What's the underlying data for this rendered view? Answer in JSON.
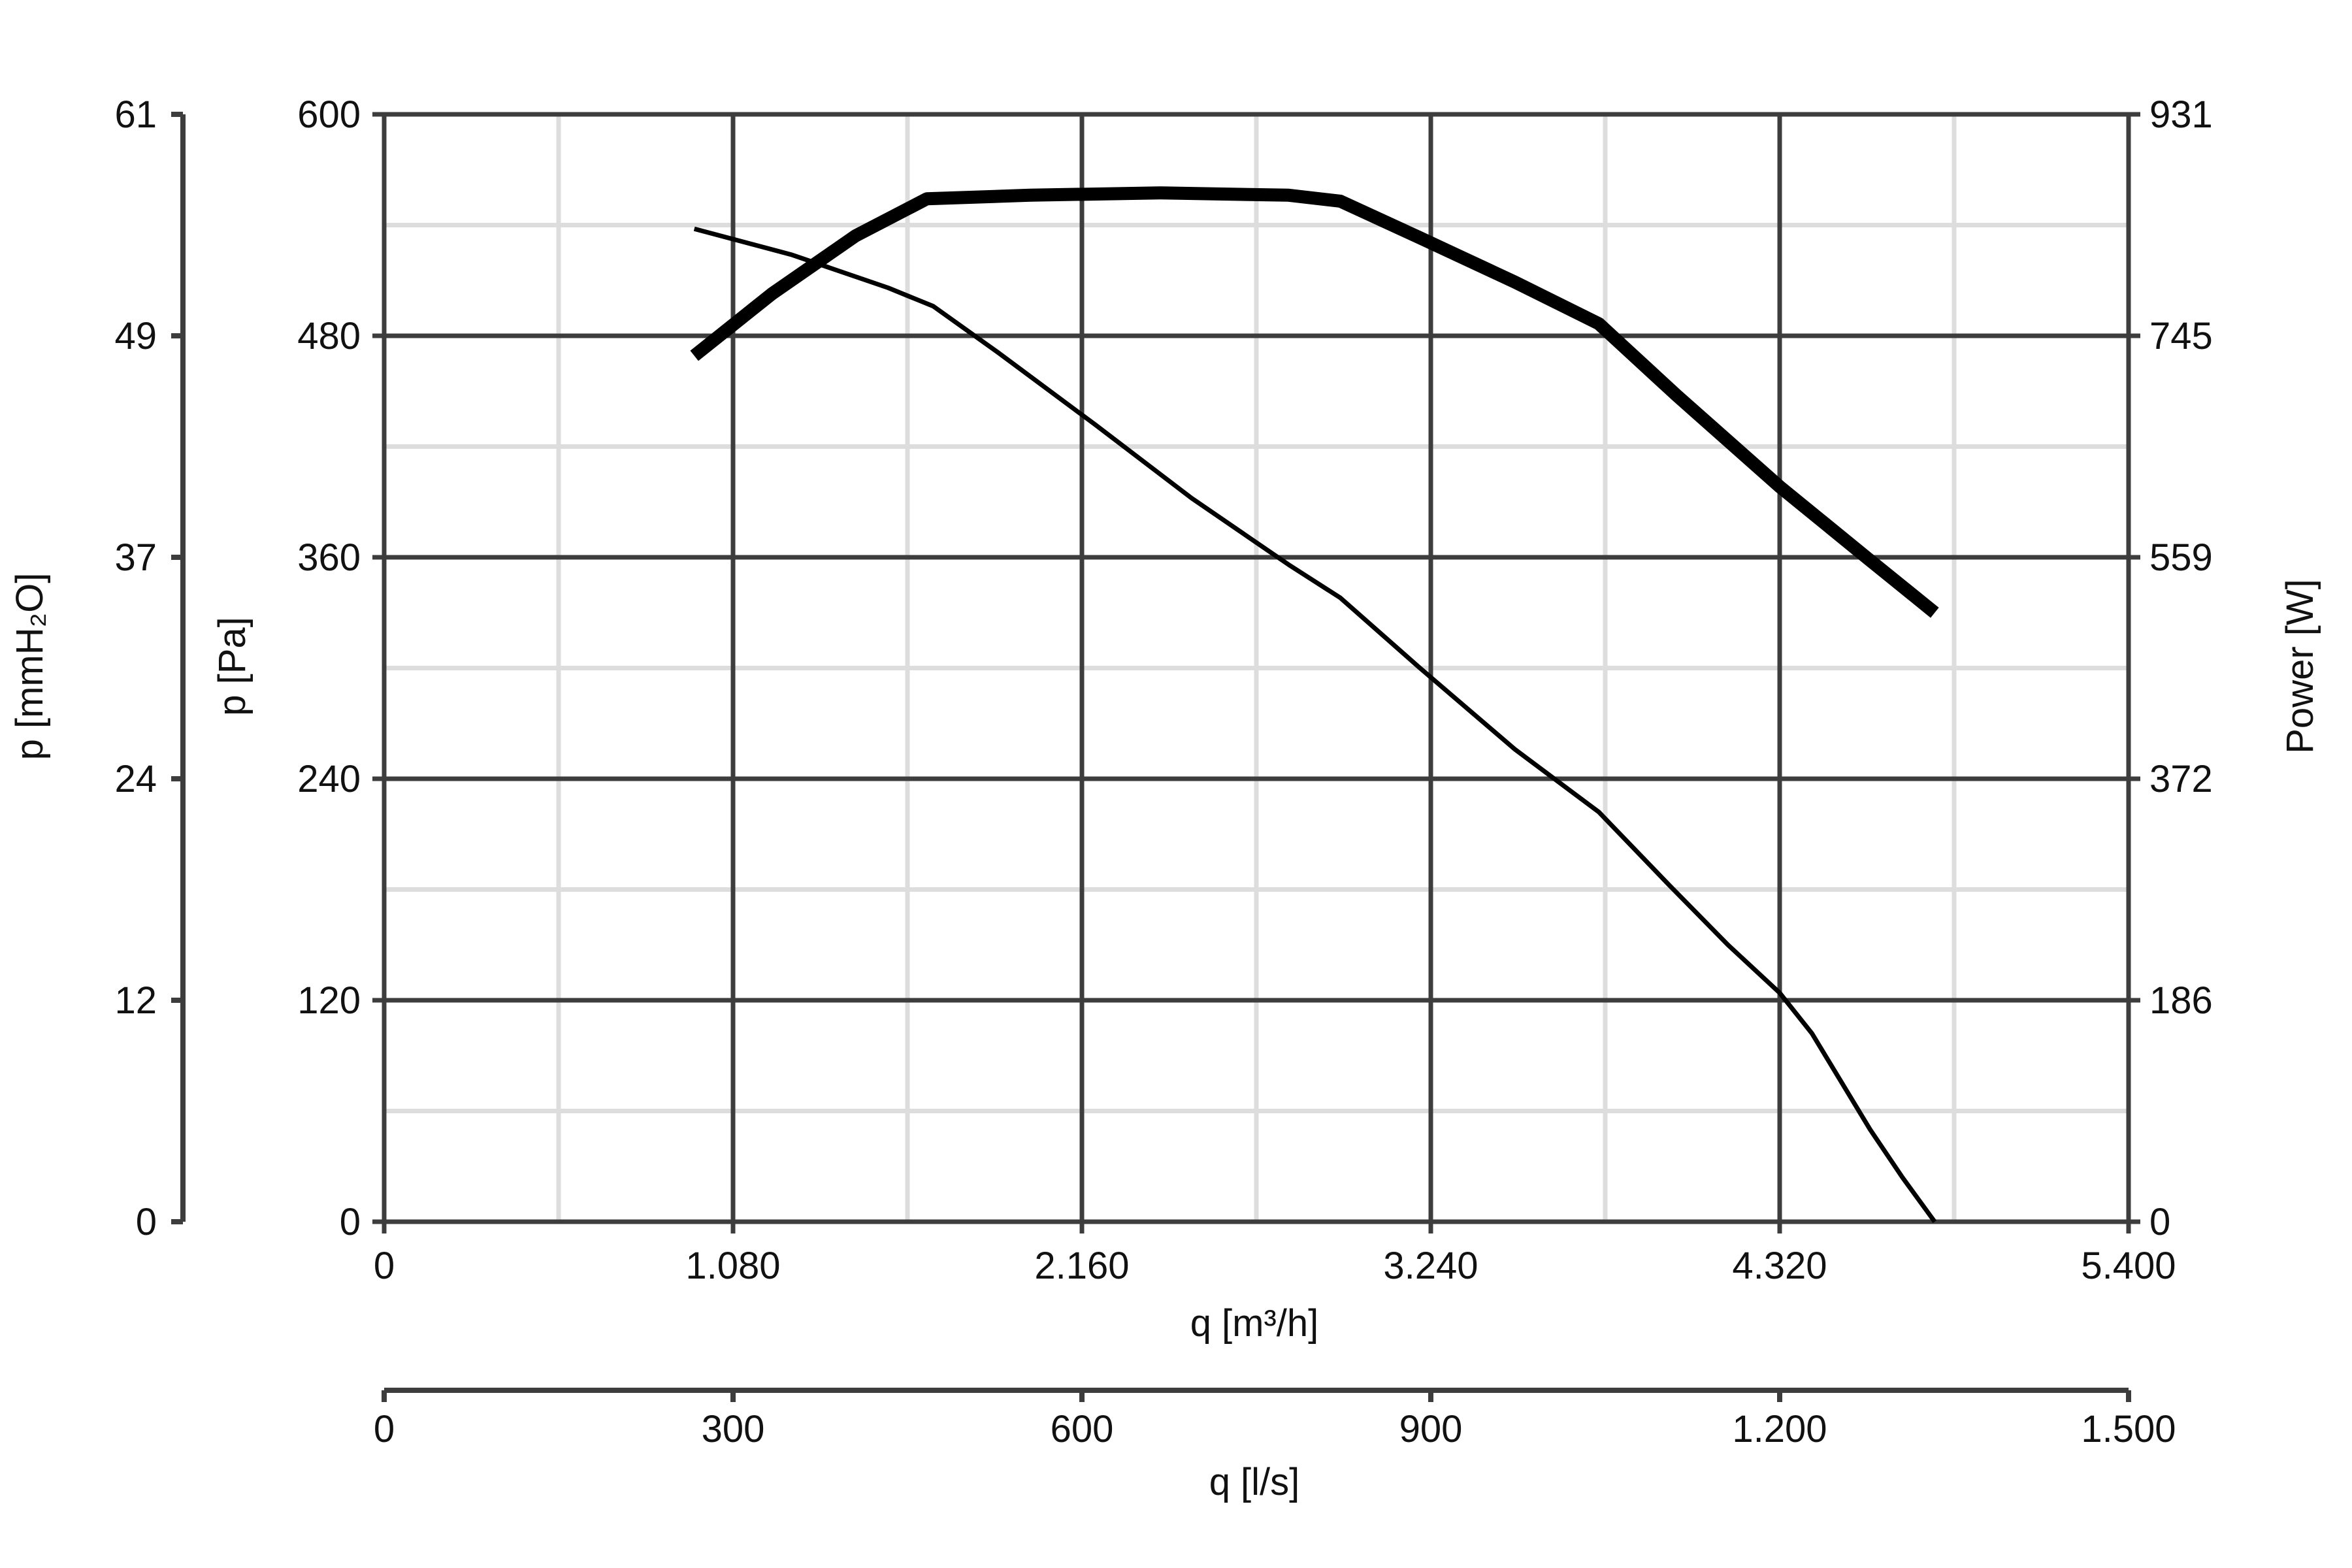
{
  "chart_data": {
    "type": "line",
    "title": "",
    "xlabel": "q [m³/h]",
    "x2label": "q [l/s]",
    "ylabel": "p [Pa]",
    "y_mm_label": "p [mmH₂O]",
    "y2label": "Power [W]",
    "xlim": [
      0,
      5400
    ],
    "ylim": [
      0,
      600
    ],
    "y2lim": [
      0,
      931
    ],
    "x_ticks": [
      "0",
      "1.080",
      "2.160",
      "3.240",
      "4.320",
      "5.400"
    ],
    "x2_ticks": [
      "0",
      "300",
      "600",
      "900",
      "1.200",
      "1.500"
    ],
    "y_ticks": [
      "0",
      "120",
      "240",
      "360",
      "480",
      "600"
    ],
    "y_mm_ticks": [
      "0",
      "12",
      "24",
      "37",
      "49",
      "61"
    ],
    "y2_ticks": [
      "0",
      "186",
      "372",
      "559",
      "745",
      "931"
    ],
    "grid": true,
    "series": [
      {
        "axis": "pressure",
        "x": [
          960,
          1260,
          1560,
          1700,
          1900,
          2200,
          2500,
          2800,
          2960,
          3200,
          3500,
          3760,
          3980,
          4160,
          4320,
          4420,
          4600,
          4700,
          4800
        ],
        "y": [
          538,
          524,
          506,
          496,
          471,
          432,
          392,
          356,
          338,
          301,
          256,
          222,
          182,
          150,
          124,
          102,
          50,
          24,
          0
        ]
      },
      {
        "axis": "power",
        "x": [
          960,
          1200,
          1460,
          1680,
          2000,
          2400,
          2800,
          2960,
          3200,
          3500,
          3760,
          4000,
          4320,
          4600,
          4800
        ],
        "y": [
          728,
          780,
          829,
          860,
          863,
          865,
          863,
          858,
          828,
          790,
          755,
          695,
          618,
          556,
          512
        ]
      }
    ]
  }
}
